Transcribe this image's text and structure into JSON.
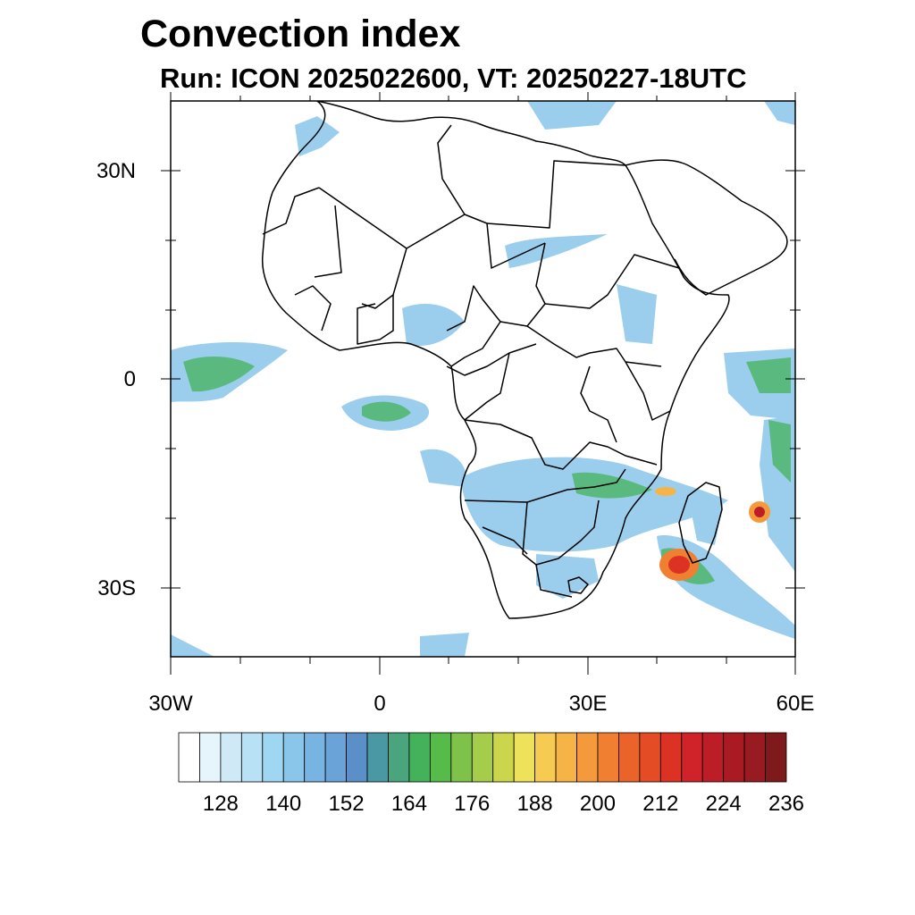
{
  "title": "Convection index",
  "subtitle": "Run: ICON 2025022600,  VT: 20250227-18UTC",
  "map": {
    "lat_labels": [
      "30N",
      "0",
      "30S"
    ],
    "lon_labels": [
      "30W",
      "0",
      "30E",
      "60E"
    ],
    "lon_range": [
      -30,
      60
    ],
    "lat_range": [
      -40,
      40
    ]
  },
  "colorbar": {
    "labels": [
      "128",
      "140",
      "152",
      "164",
      "176",
      "188",
      "200",
      "212",
      "224",
      "236"
    ],
    "colors": [
      "#ffffff",
      "#e6f4fb",
      "#cfe9f7",
      "#b9e1f5",
      "#9fd6f2",
      "#8ac6ea",
      "#78b4e2",
      "#6aa3d8",
      "#5a8fc8",
      "#4b98a5",
      "#4aa57e",
      "#44b25a",
      "#57bb4a",
      "#7fc24a",
      "#a6cc4b",
      "#cbd64d",
      "#ede25a",
      "#f7cb52",
      "#f7b446",
      "#f59a3c",
      "#f07f32",
      "#ea6329",
      "#e34c24",
      "#dc3224",
      "#cf2229",
      "#bd1d26",
      "#aa1a22",
      "#971b20",
      "#7f1a1c"
    ]
  }
}
